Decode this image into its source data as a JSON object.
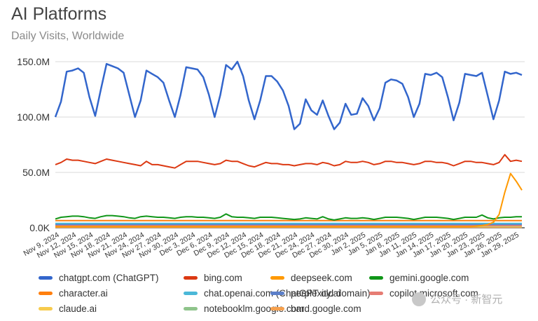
{
  "chart_data": {
    "type": "line",
    "title": "AI Platforms",
    "subtitle": "Daily Visits, Worldwide",
    "xlabel": "",
    "ylabel": "",
    "ylim": [
      0,
      150000000
    ],
    "yticks": [
      0,
      50000000,
      100000000,
      150000000
    ],
    "ytick_labels": [
      "0.0K",
      "50.0M",
      "100.0M",
      "150.0M"
    ],
    "grid": true,
    "legend_position": "bottom",
    "x_start": "2024-11-09",
    "x_end": "2025-01-30",
    "x_tick_labels": [
      "Nov 9, 2024",
      "Nov 12, 2024",
      "Nov 15, 2024",
      "Nov 18, 2024",
      "Nov 21, 2024",
      "Nov 24, 2024",
      "Nov 27, 2024",
      "Nov 30, 2024",
      "Dec 3, 2024",
      "Dec 6, 2024",
      "Dec 9, 2024",
      "Dec 12, 2024",
      "Dec 15, 2024",
      "Dec 18, 2024",
      "Dec 21, 2024",
      "Dec 24, 2024",
      "Dec 27, 2024",
      "Dec 30, 2024",
      "Jan 2, 2025",
      "Jan 5, 2025",
      "Jan 8, 2025",
      "Jan 11, 2025",
      "Jan 14, 2025",
      "Jan 17, 2025",
      "Jan 20, 2025",
      "Jan 23, 2025",
      "Jan 26, 2025",
      "Jan 29, 2025"
    ],
    "series": [
      {
        "name": "chatgpt.com (ChatGPT)",
        "color": "#3366cc",
        "values": [
          100000000,
          114000000,
          141000000,
          142000000,
          144000000,
          140000000,
          118000000,
          101000000,
          125000000,
          148000000,
          146000000,
          144000000,
          140000000,
          120000000,
          100000000,
          115000000,
          142000000,
          139000000,
          136000000,
          131000000,
          115000000,
          100000000,
          120000000,
          145000000,
          144000000,
          143000000,
          136000000,
          120000000,
          100000000,
          120000000,
          147000000,
          143000000,
          150000000,
          137000000,
          115000000,
          98000000,
          115000000,
          137000000,
          137000000,
          132000000,
          124000000,
          110000000,
          89000000,
          94000000,
          116000000,
          106000000,
          102000000,
          115000000,
          101000000,
          89000000,
          95000000,
          112000000,
          102000000,
          103000000,
          117000000,
          110000000,
          97000000,
          108000000,
          131000000,
          134000000,
          133000000,
          130000000,
          118000000,
          100000000,
          112000000,
          139000000,
          138000000,
          140000000,
          136000000,
          118000000,
          97000000,
          113000000,
          139000000,
          138000000,
          137000000,
          140000000,
          119000000,
          98000000,
          115000000,
          141000000,
          139000000,
          140000000,
          138000000
        ]
      },
      {
        "name": "bing.com",
        "color": "#dc3912",
        "values": [
          57000000,
          59000000,
          62000000,
          61000000,
          61000000,
          60000000,
          59000000,
          58000000,
          60000000,
          62000000,
          61000000,
          60000000,
          59000000,
          58000000,
          57000000,
          56000000,
          60000000,
          57000000,
          57000000,
          56000000,
          55000000,
          54000000,
          57000000,
          60000000,
          60000000,
          60000000,
          59000000,
          58000000,
          57000000,
          58000000,
          61000000,
          60000000,
          60000000,
          58000000,
          56000000,
          55000000,
          57000000,
          59000000,
          58000000,
          58000000,
          57000000,
          57000000,
          56000000,
          57000000,
          58000000,
          58000000,
          57000000,
          59000000,
          58000000,
          56000000,
          57000000,
          60000000,
          59000000,
          59000000,
          60000000,
          59000000,
          57000000,
          58000000,
          60000000,
          60000000,
          59000000,
          59000000,
          58000000,
          57000000,
          58000000,
          60000000,
          60000000,
          59000000,
          59000000,
          58000000,
          56000000,
          58000000,
          60000000,
          60000000,
          59000000,
          59000000,
          58000000,
          57000000,
          59000000,
          66000000,
          60000000,
          61000000,
          60000000
        ]
      },
      {
        "name": "deepseek.com",
        "color": "#ff9900",
        "values": [
          1000000,
          1000000,
          1000000,
          1000000,
          1000000,
          1000000,
          1000000,
          1000000,
          1000000,
          1000000,
          1000000,
          1000000,
          1000000,
          1000000,
          1000000,
          1000000,
          1000000,
          1000000,
          1000000,
          1000000,
          1000000,
          1000000,
          1000000,
          1000000,
          1000000,
          1000000,
          1000000,
          1000000,
          1000000,
          1000000,
          1000000,
          1000000,
          1000000,
          1000000,
          1000000,
          1000000,
          1000000,
          1000000,
          1000000,
          1000000,
          1000000,
          1000000,
          1000000,
          1000000,
          1000000,
          1000000,
          1000000,
          1000000,
          1000000,
          1000000,
          1000000,
          1000000,
          1000000,
          1000000,
          1000000,
          1000000,
          1000000,
          1000000,
          1000000,
          1000000,
          1000000,
          1000000,
          1000000,
          1000000,
          1000000,
          1000000,
          1000000,
          1000000,
          1000000,
          1000000,
          1000000,
          1000000,
          1000000,
          1000000,
          1500000,
          2000000,
          3000000,
          5000000,
          12000000,
          32000000,
          49000000,
          42000000,
          34000000
        ]
      },
      {
        "name": "gemini.google.com",
        "color": "#109618",
        "values": [
          8000000,
          9500000,
          10000000,
          10500000,
          10500000,
          10000000,
          9000000,
          8500000,
          10000000,
          11000000,
          11000000,
          10500000,
          10000000,
          9000000,
          8500000,
          10000000,
          10500000,
          10000000,
          9500000,
          9500000,
          9000000,
          8500000,
          9500000,
          10000000,
          10000000,
          9500000,
          9500000,
          9000000,
          8500000,
          9500000,
          12500000,
          10000000,
          9500000,
          9500000,
          9000000,
          8500000,
          9500000,
          9500000,
          9500000,
          9000000,
          8500000,
          8000000,
          7500000,
          8000000,
          9000000,
          8500000,
          8000000,
          10000000,
          8000000,
          7000000,
          8000000,
          9000000,
          8500000,
          8500000,
          9000000,
          8500000,
          7500000,
          8500000,
          9500000,
          9500000,
          9500000,
          9000000,
          8500000,
          7500000,
          8500000,
          9500000,
          9500000,
          9500000,
          9000000,
          8500000,
          7500000,
          8500000,
          9500000,
          9500000,
          9500000,
          11500000,
          9000000,
          8000000,
          9000000,
          9500000,
          9500000,
          10000000,
          10000000
        ]
      },
      {
        "name": "character.ai",
        "color": "#ff7f0e",
        "values": [
          6500000,
          6500000,
          6500000,
          6500000,
          6500000,
          6500000,
          6500000,
          6500000,
          6500000,
          6500000,
          6500000,
          6500000,
          6500000,
          6500000,
          6500000,
          6500000,
          6500000,
          6500000,
          6500000,
          6500000,
          6500000,
          6500000,
          6500000,
          6500000,
          6500000,
          6500000,
          6500000,
          6500000,
          6500000,
          6500000,
          6500000,
          6500000,
          6500000,
          6500000,
          6500000,
          6500000,
          6500000,
          6500000,
          6500000,
          6500000,
          6500000,
          6500000,
          6500000,
          6500000,
          6500000,
          6500000,
          6500000,
          6500000,
          6500000,
          6500000,
          6500000,
          6500000,
          6500000,
          6500000,
          6500000,
          6500000,
          6500000,
          6500000,
          6500000,
          6500000,
          6500000,
          6500000,
          6500000,
          6500000,
          6500000,
          6500000,
          6500000,
          6500000,
          6500000,
          6500000,
          6500000,
          6500000,
          6500000,
          6500000,
          6500000,
          6500000,
          6500000,
          6500000,
          6500000,
          6500000,
          6500000,
          6500000,
          6500000
        ]
      },
      {
        "name": "chat.openai.com (ChatGPT old domain)",
        "color": "#4ab8d8",
        "values": [
          4000000,
          4000000,
          4000000,
          4000000,
          4000000,
          4000000,
          4000000,
          4000000,
          4000000,
          4000000,
          4000000,
          4000000,
          4000000,
          4000000,
          4000000,
          4000000,
          4000000,
          4000000,
          4000000,
          4000000,
          4000000,
          4000000,
          4000000,
          4000000,
          4000000,
          4000000,
          4000000,
          4000000,
          4000000,
          4000000,
          4000000,
          4000000,
          4000000,
          4000000,
          4000000,
          4000000,
          4000000,
          4000000,
          4000000,
          4000000,
          4000000,
          4000000,
          4000000,
          4000000,
          4000000,
          4000000,
          4000000,
          4000000,
          4000000,
          4000000,
          4000000,
          4000000,
          4000000,
          4000000,
          4000000,
          4000000,
          4000000,
          4000000,
          4000000,
          4000000,
          4000000,
          4000000,
          4000000,
          4000000,
          4000000,
          4000000,
          4000000,
          4000000,
          4000000,
          4000000,
          4000000,
          4000000,
          4000000,
          4000000,
          4000000,
          4000000,
          4000000,
          4000000,
          4000000,
          4000000,
          4000000,
          4000000,
          4000000
        ]
      },
      {
        "name": "perplexity.ai",
        "color": "#5b7fc9",
        "values": [
          3000000,
          3000000,
          3000000,
          3000000,
          3000000,
          3000000,
          3000000,
          3000000,
          3000000,
          3000000,
          3000000,
          3000000,
          3000000,
          3000000,
          3000000,
          3000000,
          3000000,
          3000000,
          3000000,
          3000000,
          3000000,
          3000000,
          3000000,
          3000000,
          3000000,
          3000000,
          3000000,
          3000000,
          3000000,
          3000000,
          3000000,
          3000000,
          3000000,
          3000000,
          3000000,
          3000000,
          3000000,
          3000000,
          3000000,
          3000000,
          3000000,
          3000000,
          3000000,
          3000000,
          3000000,
          3000000,
          3000000,
          3000000,
          3000000,
          3000000,
          3000000,
          3000000,
          3000000,
          3000000,
          3000000,
          3000000,
          3000000,
          3000000,
          3000000,
          3000000,
          3000000,
          3000000,
          3000000,
          3000000,
          3000000,
          3000000,
          3000000,
          3000000,
          3000000,
          3000000,
          3000000,
          3000000,
          3000000,
          3000000,
          3000000,
          3000000,
          3000000,
          3000000,
          3000000,
          3000000,
          3000000,
          3000000,
          3000000
        ]
      },
      {
        "name": "copilot.microsoft.com",
        "color": "#e67c73",
        "values": [
          2000000,
          2000000,
          2000000,
          2000000,
          2000000,
          2000000,
          2000000,
          2000000,
          2000000,
          2000000,
          2000000,
          2000000,
          2000000,
          2000000,
          2000000,
          2000000,
          2000000,
          2000000,
          2000000,
          2000000,
          2000000,
          2000000,
          2000000,
          2000000,
          2000000,
          2000000,
          2000000,
          2000000,
          2000000,
          2000000,
          2000000,
          2000000,
          2000000,
          2000000,
          2000000,
          2000000,
          2000000,
          2000000,
          2000000,
          2000000,
          2000000,
          2000000,
          2000000,
          2000000,
          2000000,
          2000000,
          2000000,
          2000000,
          2000000,
          2000000,
          2000000,
          2000000,
          2000000,
          2000000,
          2000000,
          2000000,
          2000000,
          2000000,
          2000000,
          2000000,
          2000000,
          2000000,
          2000000,
          2000000,
          2000000,
          2000000,
          2000000,
          2000000,
          2000000,
          2000000,
          2000000,
          2000000,
          2000000,
          2000000,
          2000000,
          2000000,
          2000000,
          2000000,
          2000000,
          2000000,
          2000000,
          2000000,
          2000000
        ]
      },
      {
        "name": "claude.ai",
        "color": "#f7cb4d",
        "values": [
          1500000,
          1500000,
          1500000,
          1500000,
          1500000,
          1500000,
          1500000,
          1500000,
          1500000,
          1500000,
          1500000,
          1500000,
          1500000,
          1500000,
          1500000,
          1500000,
          1500000,
          1500000,
          1500000,
          1500000,
          1500000,
          1500000,
          1500000,
          1500000,
          1500000,
          1500000,
          1500000,
          1500000,
          1500000,
          1500000,
          1500000,
          1500000,
          1500000,
          1500000,
          1500000,
          1500000,
          1500000,
          1500000,
          1500000,
          1500000,
          1500000,
          1500000,
          1500000,
          1500000,
          1500000,
          1500000,
          1500000,
          1500000,
          1500000,
          1500000,
          1500000,
          1500000,
          1500000,
          1500000,
          1500000,
          1500000,
          1500000,
          1500000,
          1500000,
          1500000,
          1500000,
          1500000,
          1500000,
          1500000,
          1500000,
          1500000,
          1500000,
          1500000,
          1500000,
          1500000,
          1500000,
          1500000,
          1500000,
          1500000,
          1500000,
          1500000,
          1500000,
          1500000,
          1500000,
          1500000,
          1500000,
          1500000,
          1500000
        ]
      },
      {
        "name": "notebooklm.google.com",
        "color": "#8fc48b",
        "values": [
          1200000,
          1200000,
          1200000,
          1200000,
          1200000,
          1200000,
          1200000,
          1200000,
          1200000,
          1200000,
          1200000,
          1200000,
          1200000,
          1200000,
          1200000,
          1200000,
          1200000,
          1200000,
          1200000,
          1200000,
          1200000,
          1200000,
          1200000,
          1200000,
          1200000,
          1200000,
          1200000,
          1200000,
          1200000,
          1200000,
          1200000,
          1200000,
          1200000,
          1200000,
          1200000,
          1200000,
          1200000,
          1200000,
          1200000,
          1200000,
          1200000,
          1200000,
          1200000,
          1200000,
          1200000,
          1200000,
          1200000,
          1200000,
          1200000,
          1200000,
          1200000,
          1200000,
          1200000,
          1200000,
          1200000,
          1200000,
          1200000,
          1200000,
          1200000,
          1200000,
          1200000,
          1200000,
          1200000,
          1200000,
          1200000,
          1200000,
          1200000,
          1200000,
          1200000,
          1200000,
          1200000,
          1200000,
          1200000,
          1200000,
          1200000,
          1200000,
          1200000,
          1200000,
          1200000,
          1200000,
          1200000,
          1200000,
          1200000
        ]
      },
      {
        "name": "bard.google.com",
        "color": "#f6a04d",
        "values": [
          500000,
          500000,
          500000,
          500000,
          500000,
          500000,
          500000,
          500000,
          500000,
          500000,
          500000,
          500000,
          500000,
          500000,
          500000,
          500000,
          500000,
          500000,
          500000,
          500000,
          500000,
          500000,
          500000,
          500000,
          500000,
          500000,
          500000,
          500000,
          500000,
          500000,
          500000,
          500000,
          500000,
          500000,
          500000,
          500000,
          500000,
          500000,
          500000,
          500000,
          500000,
          500000,
          500000,
          500000,
          500000,
          500000,
          500000,
          500000,
          500000,
          500000,
          500000,
          500000,
          500000,
          500000,
          500000,
          500000,
          500000,
          500000,
          500000,
          500000,
          500000,
          500000,
          500000,
          500000,
          500000,
          500000,
          500000,
          500000,
          500000,
          500000,
          500000,
          500000,
          500000,
          500000,
          500000,
          500000,
          500000,
          500000,
          500000,
          500000,
          500000,
          500000,
          500000
        ]
      }
    ]
  },
  "watermark": "公众号 · 新智元"
}
